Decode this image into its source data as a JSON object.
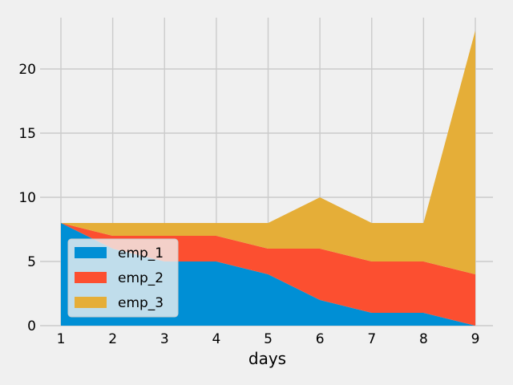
{
  "chart_data": {
    "type": "area",
    "stacked": true,
    "x": [
      1,
      2,
      3,
      4,
      5,
      6,
      7,
      8,
      9
    ],
    "xlabel": "days",
    "ylabel": "",
    "title": "",
    "xlim": [
      1,
      9
    ],
    "ylim": [
      0,
      24
    ],
    "yticks": [
      0,
      5,
      10,
      15,
      20
    ],
    "xticks": [
      1,
      2,
      3,
      4,
      5,
      6,
      7,
      8,
      9
    ],
    "grid": true,
    "legend_position": "lower-left",
    "series": [
      {
        "name": "emp_1",
        "color": "#008fd5",
        "values": [
          8,
          6,
          5,
          5,
          4,
          2,
          1,
          1,
          0
        ]
      },
      {
        "name": "emp_2",
        "color": "#fc4f30",
        "values": [
          0,
          1,
          2,
          2,
          2,
          4,
          4,
          4,
          4
        ]
      },
      {
        "name": "emp_3",
        "color": "#e5ae38",
        "values": [
          0,
          1,
          1,
          1,
          2,
          4,
          3,
          3,
          19
        ]
      }
    ]
  }
}
